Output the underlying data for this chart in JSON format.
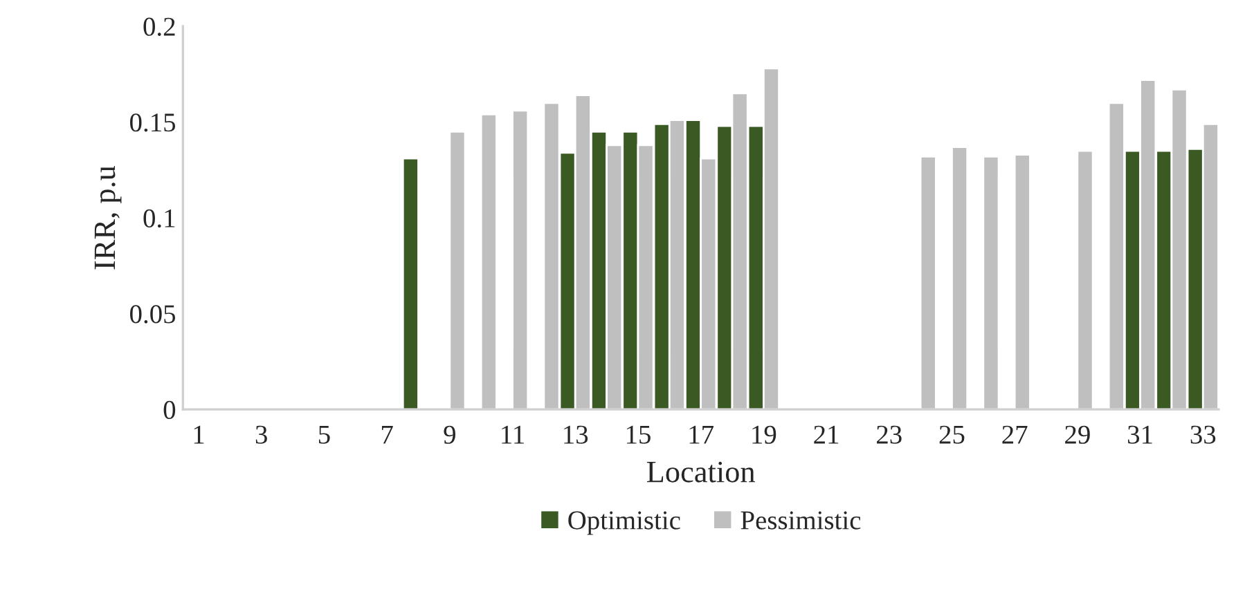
{
  "chart_data": {
    "type": "bar",
    "xlabel": "Location",
    "ylabel": "IRR, p.u",
    "categories": [
      "1",
      null,
      "3",
      null,
      "5",
      null,
      "7",
      null,
      "9",
      null,
      "11",
      null,
      "13",
      null,
      "15",
      null,
      "17",
      null,
      "19",
      null,
      "21",
      null,
      "23",
      null,
      "25",
      null,
      "27",
      null,
      "29",
      null,
      "31",
      null,
      "33"
    ],
    "series": [
      {
        "name": "Optimistic",
        "color": "#3b5a23",
        "values": [
          null,
          null,
          null,
          null,
          null,
          null,
          null,
          0.131,
          null,
          null,
          null,
          null,
          0.134,
          0.145,
          0.145,
          0.149,
          0.151,
          0.148,
          0.148,
          null,
          null,
          null,
          null,
          null,
          null,
          null,
          null,
          null,
          null,
          null,
          0.135,
          0.135,
          0.136
        ]
      },
      {
        "name": "Pessimistic",
        "color": "#bfbfbf",
        "values": [
          null,
          null,
          null,
          null,
          null,
          null,
          null,
          null,
          0.145,
          0.154,
          0.156,
          0.16,
          0.164,
          0.138,
          0.138,
          0.151,
          0.131,
          0.165,
          0.178,
          null,
          null,
          null,
          null,
          0.132,
          0.137,
          0.132,
          0.133,
          null,
          0.135,
          0.16,
          0.172,
          0.167,
          0.149
        ]
      }
    ],
    "ylim": [
      0,
      0.2
    ],
    "yticks": [
      0,
      0.05,
      0.1,
      0.15,
      0.2
    ],
    "grid": false,
    "legend": "bottom"
  }
}
